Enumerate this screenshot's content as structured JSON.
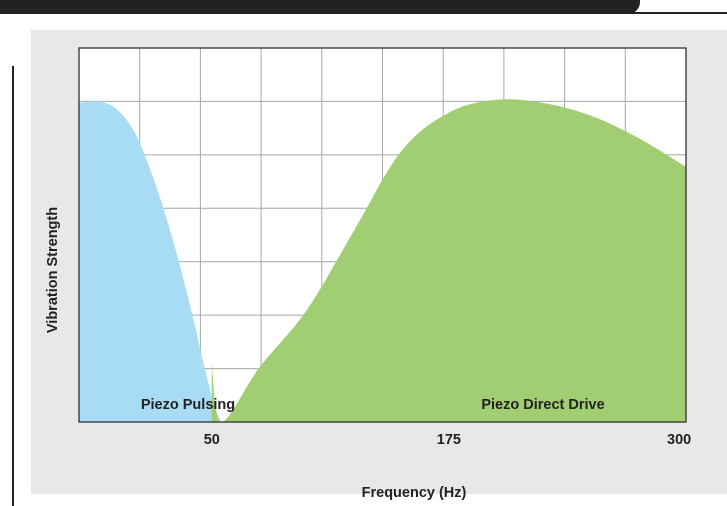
{
  "chart_data": {
    "type": "area",
    "title": "",
    "xlabel": "Frequency (Hz)",
    "ylabel": "Vibration Strength",
    "x_ticks": [
      50,
      175,
      300
    ],
    "xlim": [
      -20,
      300
    ],
    "ylim": [
      0,
      100
    ],
    "grid": true,
    "series": [
      {
        "name": "Piezo Pulsing",
        "color": "#a8dcf5",
        "x": [
          -20,
          -10,
          0,
          10,
          20,
          30,
          40,
          45,
          50,
          52,
          55
        ],
        "y": [
          100,
          100.5,
          98,
          90,
          75,
          56,
          33,
          20,
          8,
          4,
          0
        ]
      },
      {
        "name": "Piezo Direct Drive",
        "color": "#a2ce73",
        "x": [
          50,
          55,
          75,
          100,
          125,
          150,
          175,
          200,
          225,
          250,
          275,
          300
        ],
        "y": [
          18,
          0,
          17,
          35,
          60,
          85,
          97,
          101,
          100,
          96,
          89,
          80
        ]
      }
    ]
  }
}
